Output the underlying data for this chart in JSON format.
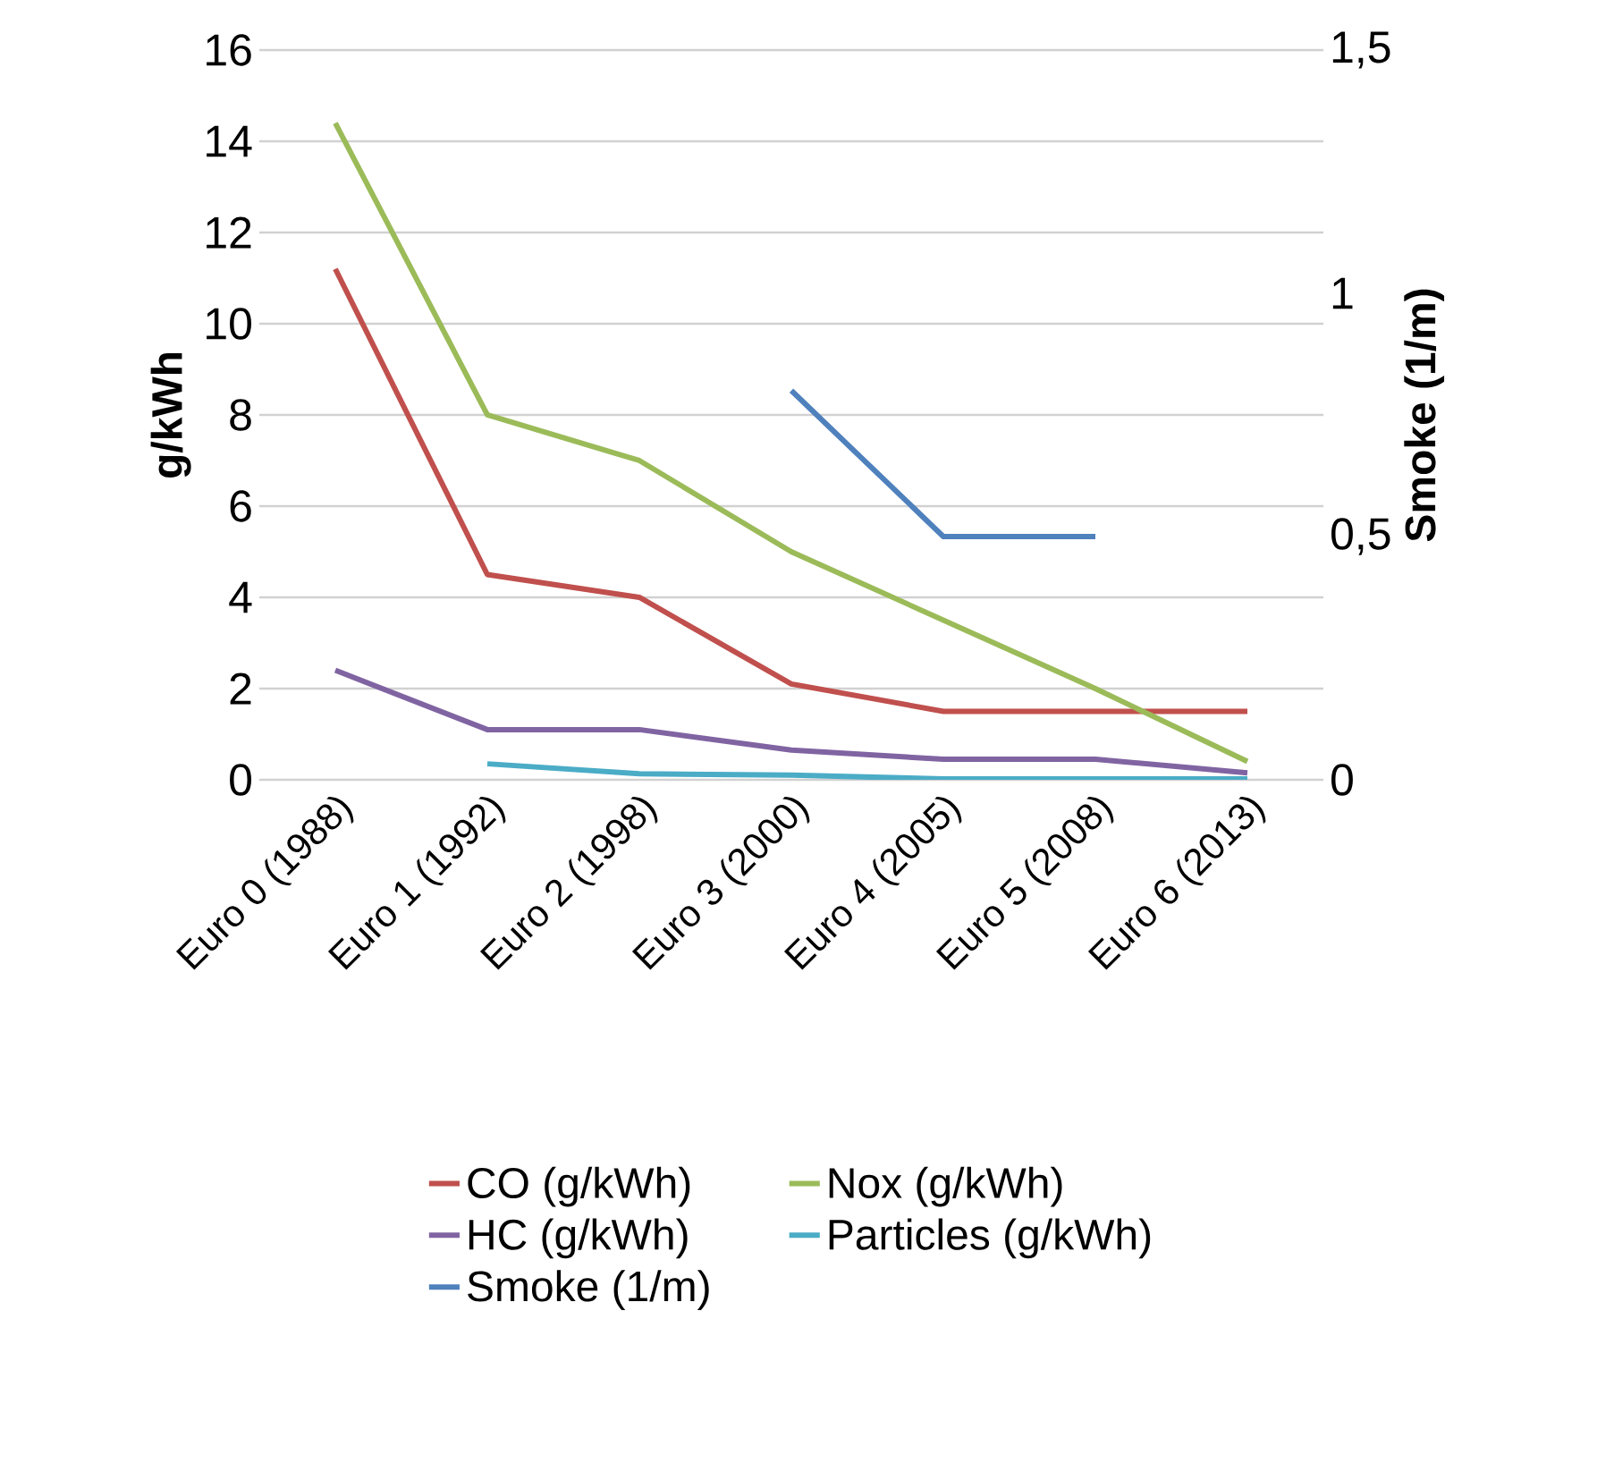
{
  "chart_data": {
    "type": "line",
    "ylabel": "g/kWh",
    "y2label": "Smoke (1/m)",
    "categories": [
      "Euro 0 (1988)",
      "Euro 1 (1992)",
      "Euro 2 (1998)",
      "Euro 3 (2000)",
      "Euro 4 (2005)",
      "Euro 5 (2008)",
      "Euro 6 (2013)"
    ],
    "series": [
      {
        "name": "CO (g/kWh)",
        "color": "#c0504d",
        "values": [
          11.2,
          4.5,
          4.0,
          2.1,
          1.5,
          1.5,
          1.5
        ]
      },
      {
        "name": "Nox (g/kWh)",
        "color": "#9bbb59",
        "values": [
          14.4,
          8.0,
          7.0,
          5.0,
          3.5,
          2.0,
          0.4
        ]
      },
      {
        "name": "HC (g/kWh)",
        "color": "#8064a2",
        "values": [
          2.4,
          1.1,
          1.1,
          0.65,
          0.45,
          0.45,
          0.15
        ]
      },
      {
        "name": "Particles (g/kWh)",
        "color": "#4bacc6",
        "values": [
          null,
          0.35,
          0.13,
          0.1,
          0.02,
          0.02,
          0.02
        ]
      },
      {
        "name": "Smoke (1/m)",
        "color": "#4f81bd",
        "axis": "y2",
        "values": [
          null,
          null,
          null,
          0.8,
          0.5,
          0.5,
          null
        ]
      }
    ],
    "ylim": [
      0,
      16
    ],
    "yticks": [
      0,
      2,
      4,
      6,
      8,
      10,
      12,
      14,
      16
    ],
    "y2lim": [
      0,
      1.5
    ],
    "y2ticks": [
      0,
      {
        "value": 0.5,
        "label": "0,5"
      },
      1,
      {
        "value": 1.5,
        "label": "1,5"
      }
    ],
    "grid": "y",
    "legend": "bottom",
    "marker": "none",
    "line_style": "solid"
  }
}
